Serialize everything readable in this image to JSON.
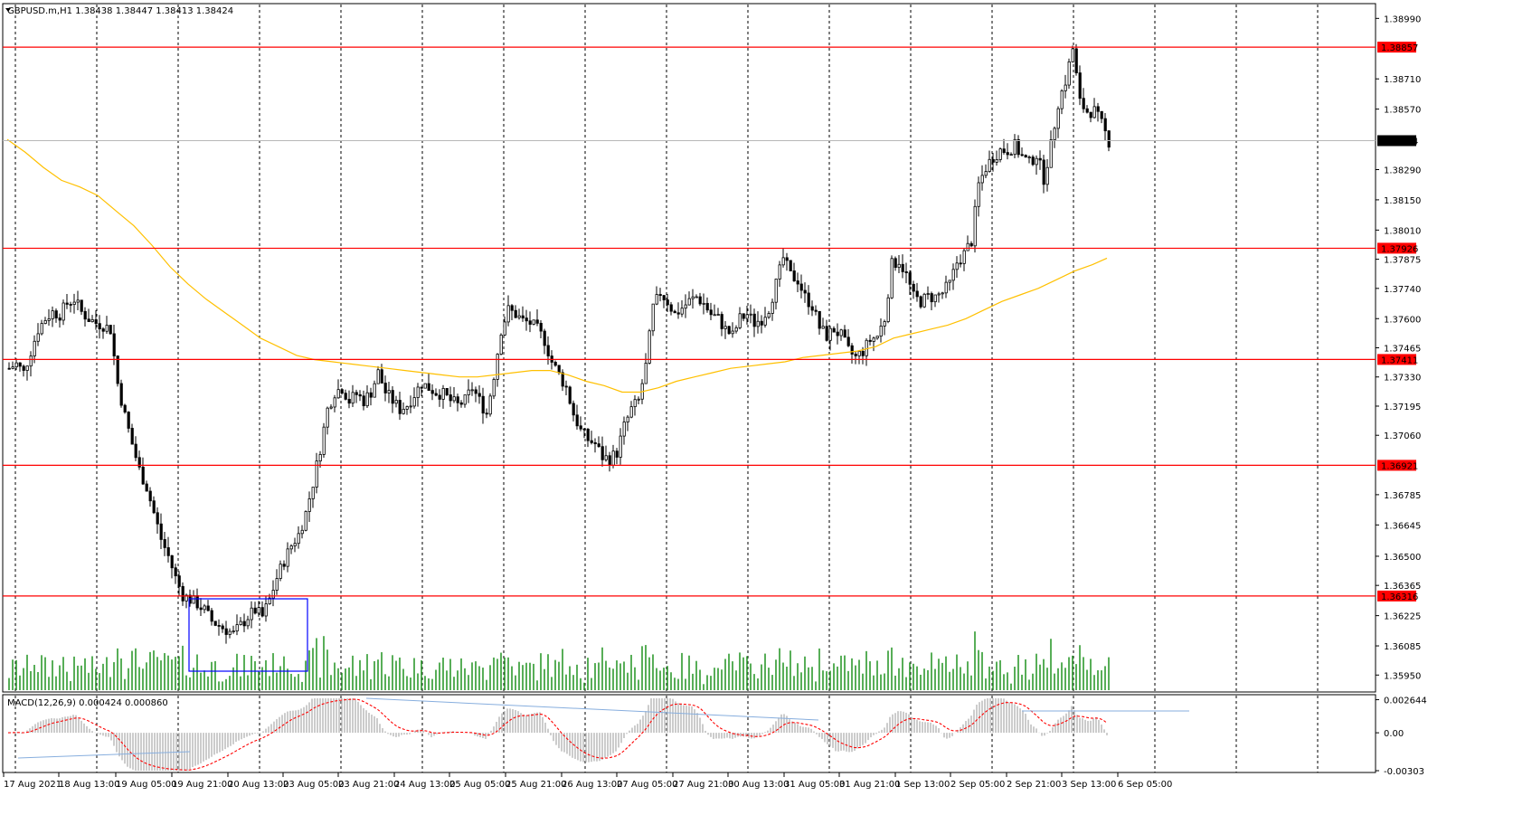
{
  "header": {
    "symbol_text": "GBPUSD.m,H1  1.38438 1.38447 1.38413 1.38424",
    "macd_label": "MACD(12,26,9) 0.000424 0.000860"
  },
  "chart_data": {
    "type": "candlestick",
    "symbol": "GBPUSD.m",
    "timeframe": "H1",
    "ohlc_current": {
      "open": 1.38438,
      "high": 1.38447,
      "low": 1.38413,
      "close": 1.38424
    },
    "y_range": [
      1.3588,
      1.3905
    ],
    "price_ticks": [
      "1.38990",
      "1.38710",
      "1.38570",
      "1.38290",
      "1.38150",
      "1.38010",
      "1.37875",
      "1.37740",
      "1.37600",
      "1.37465",
      "1.37330",
      "1.37195",
      "1.37060",
      "1.36785",
      "1.36645",
      "1.36500",
      "1.36365",
      "1.36225",
      "1.36085",
      "1.35950"
    ],
    "horizontal_levels": [
      {
        "value": 1.38857,
        "label": "1.38857",
        "color": "#ff0000"
      },
      {
        "value": 1.37926,
        "label": "1.37926",
        "color": "#ff0000"
      },
      {
        "value": 1.37411,
        "label": "1.37411",
        "color": "#ff0000"
      },
      {
        "value": 1.36921,
        "label": "1.36921",
        "color": "#ff0000"
      },
      {
        "value": 1.36316,
        "label": "1.36316",
        "color": "#ff0000"
      }
    ],
    "current_price": {
      "value": 1.38424,
      "label": "1.38424"
    },
    "x_labels": [
      "17 Aug 2021",
      "18 Aug 13:00",
      "19 Aug 05:00",
      "19 Aug 21:00",
      "20 Aug 13:00",
      "23 Aug 05:00",
      "23 Aug 21:00",
      "24 Aug 13:00",
      "25 Aug 05:00",
      "25 Aug 21:00",
      "26 Aug 13:00",
      "27 Aug 05:00",
      "27 Aug 21:00",
      "30 Aug 13:00",
      "31 Aug 05:00",
      "31 Aug 21:00",
      "1 Sep 13:00",
      "2 Sep 05:00",
      "2 Sep 21:00",
      "3 Sep 13:00",
      "6 Sep 05:00"
    ],
    "close_path": [
      [
        0,
        1.3737
      ],
      [
        8,
        1.3739
      ],
      [
        16,
        1.3735
      ],
      [
        24,
        1.3745
      ],
      [
        32,
        1.3755
      ],
      [
        40,
        1.376
      ],
      [
        48,
        1.3763
      ],
      [
        56,
        1.3762
      ],
      [
        64,
        1.3767
      ],
      [
        72,
        1.3769
      ],
      [
        80,
        1.3763
      ],
      [
        88,
        1.376
      ],
      [
        96,
        1.3758
      ],
      [
        104,
        1.3757
      ],
      [
        112,
        1.3755
      ],
      [
        120,
        1.373
      ],
      [
        128,
        1.3715
      ],
      [
        136,
        1.3702
      ],
      [
        144,
        1.369
      ],
      [
        152,
        1.3682
      ],
      [
        160,
        1.367
      ],
      [
        168,
        1.3658
      ],
      [
        176,
        1.365
      ],
      [
        184,
        1.364
      ],
      [
        192,
        1.3632
      ],
      [
        200,
        1.363
      ],
      [
        208,
        1.3628
      ],
      [
        216,
        1.3625
      ],
      [
        224,
        1.362
      ],
      [
        232,
        1.3618
      ],
      [
        240,
        1.3616
      ],
      [
        248,
        1.3614
      ],
      [
        256,
        1.3618
      ],
      [
        264,
        1.3622
      ],
      [
        272,
        1.3625
      ],
      [
        280,
        1.3622
      ],
      [
        288,
        1.363
      ],
      [
        296,
        1.364
      ],
      [
        304,
        1.3648
      ],
      [
        312,
        1.3655
      ],
      [
        320,
        1.366
      ],
      [
        328,
        1.367
      ],
      [
        336,
        1.3684
      ],
      [
        344,
        1.37
      ],
      [
        352,
        1.3718
      ],
      [
        360,
        1.3726
      ],
      [
        368,
        1.3728
      ],
      [
        376,
        1.3722
      ],
      [
        384,
        1.3725
      ],
      [
        392,
        1.3722
      ],
      [
        400,
        1.3726
      ],
      [
        408,
        1.3735
      ],
      [
        416,
        1.3726
      ],
      [
        424,
        1.3722
      ],
      [
        432,
        1.3718
      ],
      [
        440,
        1.372
      ],
      [
        448,
        1.3725
      ],
      [
        456,
        1.373
      ],
      [
        464,
        1.3728
      ],
      [
        472,
        1.3726
      ],
      [
        480,
        1.3725
      ],
      [
        488,
        1.3722
      ],
      [
        496,
        1.372
      ],
      [
        504,
        1.3722
      ],
      [
        512,
        1.3728
      ],
      [
        520,
        1.3722
      ],
      [
        528,
        1.3716
      ],
      [
        536,
        1.3734
      ],
      [
        544,
        1.3755
      ],
      [
        552,
        1.3764
      ],
      [
        560,
        1.3762
      ],
      [
        568,
        1.3759
      ],
      [
        576,
        1.3758
      ],
      [
        584,
        1.3755
      ],
      [
        592,
        1.375
      ],
      [
        600,
        1.374
      ],
      [
        608,
        1.3734
      ],
      [
        616,
        1.3728
      ],
      [
        624,
        1.3716
      ],
      [
        632,
        1.3708
      ],
      [
        640,
        1.3704
      ],
      [
        648,
        1.3702
      ],
      [
        656,
        1.3696
      ],
      [
        664,
        1.3695
      ],
      [
        672,
        1.3698
      ],
      [
        680,
        1.371
      ],
      [
        688,
        1.3718
      ],
      [
        696,
        1.3722
      ],
      [
        704,
        1.3738
      ],
      [
        712,
        1.3765
      ],
      [
        720,
        1.3772
      ],
      [
        728,
        1.3768
      ],
      [
        736,
        1.3762
      ],
      [
        744,
        1.3765
      ],
      [
        752,
        1.3768
      ],
      [
        760,
        1.377
      ],
      [
        768,
        1.3767
      ],
      [
        776,
        1.3762
      ],
      [
        784,
        1.376
      ],
      [
        792,
        1.3755
      ],
      [
        800,
        1.3752
      ],
      [
        808,
        1.376
      ],
      [
        816,
        1.3762
      ],
      [
        824,
        1.3758
      ],
      [
        832,
        1.376
      ],
      [
        840,
        1.3765
      ],
      [
        848,
        1.3776
      ],
      [
        856,
        1.3788
      ],
      [
        864,
        1.378
      ],
      [
        872,
        1.3778
      ],
      [
        880,
        1.377
      ],
      [
        888,
        1.3766
      ],
      [
        896,
        1.3756
      ],
      [
        904,
        1.3752
      ],
      [
        912,
        1.3755
      ],
      [
        920,
        1.3752
      ],
      [
        928,
        1.3745
      ],
      [
        936,
        1.3742
      ],
      [
        944,
        1.3745
      ],
      [
        952,
        1.375
      ],
      [
        960,
        1.3752
      ],
      [
        968,
        1.376
      ],
      [
        976,
        1.3785
      ],
      [
        984,
        1.3787
      ],
      [
        992,
        1.378
      ],
      [
        1000,
        1.377
      ],
      [
        1008,
        1.3768
      ],
      [
        1016,
        1.377
      ],
      [
        1024,
        1.377
      ],
      [
        1032,
        1.3772
      ],
      [
        1040,
        1.3776
      ],
      [
        1048,
        1.3786
      ],
      [
        1056,
        1.379
      ],
      [
        1064,
        1.3796
      ],
      [
        1072,
        1.3822
      ],
      [
        1080,
        1.383
      ],
      [
        1088,
        1.3835
      ],
      [
        1096,
        1.3838
      ],
      [
        1104,
        1.3838
      ],
      [
        1112,
        1.384
      ],
      [
        1120,
        1.3835
      ],
      [
        1128,
        1.3832
      ],
      [
        1136,
        1.3836
      ],
      [
        1144,
        1.3825
      ],
      [
        1152,
        1.384
      ],
      [
        1160,
        1.386
      ],
      [
        1168,
        1.387
      ],
      [
        1176,
        1.3885
      ],
      [
        1184,
        1.386
      ],
      [
        1192,
        1.3856
      ],
      [
        1200,
        1.3856
      ],
      [
        1208,
        1.385
      ],
      [
        1216,
        1.3842
      ]
    ],
    "ma_line": [
      [
        0,
        1.3843
      ],
      [
        20,
        1.3837
      ],
      [
        40,
        1.383
      ],
      [
        60,
        1.3824
      ],
      [
        80,
        1.3821
      ],
      [
        100,
        1.3817
      ],
      [
        120,
        1.381
      ],
      [
        140,
        1.3803
      ],
      [
        160,
        1.3794
      ],
      [
        180,
        1.3784
      ],
      [
        200,
        1.3776
      ],
      [
        220,
        1.3769
      ],
      [
        240,
        1.3763
      ],
      [
        260,
        1.3757
      ],
      [
        280,
        1.3751
      ],
      [
        300,
        1.3747
      ],
      [
        320,
        1.3743
      ],
      [
        340,
        1.3741
      ],
      [
        360,
        1.374
      ],
      [
        380,
        1.3739
      ],
      [
        400,
        1.3738
      ],
      [
        420,
        1.3737
      ],
      [
        440,
        1.3736
      ],
      [
        460,
        1.3735
      ],
      [
        480,
        1.3734
      ],
      [
        500,
        1.3733
      ],
      [
        520,
        1.3733
      ],
      [
        540,
        1.3734
      ],
      [
        560,
        1.3735
      ],
      [
        580,
        1.3736
      ],
      [
        600,
        1.3736
      ],
      [
        620,
        1.3734
      ],
      [
        640,
        1.3731
      ],
      [
        660,
        1.3729
      ],
      [
        680,
        1.3726
      ],
      [
        700,
        1.3726
      ],
      [
        720,
        1.3728
      ],
      [
        740,
        1.3731
      ],
      [
        760,
        1.3733
      ],
      [
        780,
        1.3735
      ],
      [
        800,
        1.3737
      ],
      [
        820,
        1.3738
      ],
      [
        840,
        1.3739
      ],
      [
        860,
        1.374
      ],
      [
        880,
        1.3742
      ],
      [
        900,
        1.3743
      ],
      [
        920,
        1.3744
      ],
      [
        940,
        1.3745
      ],
      [
        960,
        1.3747
      ],
      [
        980,
        1.3751
      ],
      [
        1000,
        1.3753
      ],
      [
        1020,
        1.3755
      ],
      [
        1040,
        1.3757
      ],
      [
        1060,
        1.376
      ],
      [
        1080,
        1.3764
      ],
      [
        1100,
        1.3768
      ],
      [
        1120,
        1.3771
      ],
      [
        1140,
        1.3774
      ],
      [
        1160,
        1.3778
      ],
      [
        1180,
        1.3782
      ],
      [
        1200,
        1.3785
      ],
      [
        1216,
        1.3788
      ]
    ],
    "ma_color": "#ffc000",
    "macd": {
      "label": "MACD(12,26,9)",
      "main": 0.000424,
      "signal": 0.00086,
      "y_range": [
        -0.00303,
        0.0029
      ],
      "ticks": [
        "0.002644",
        "0.00",
        "-0.00303"
      ],
      "histogram_color": "#c0c0c0",
      "signal_color": "#ff0000"
    },
    "rectangle": {
      "color": "#0000ff"
    },
    "grid": true,
    "grid_style": "dashed-vertical"
  }
}
